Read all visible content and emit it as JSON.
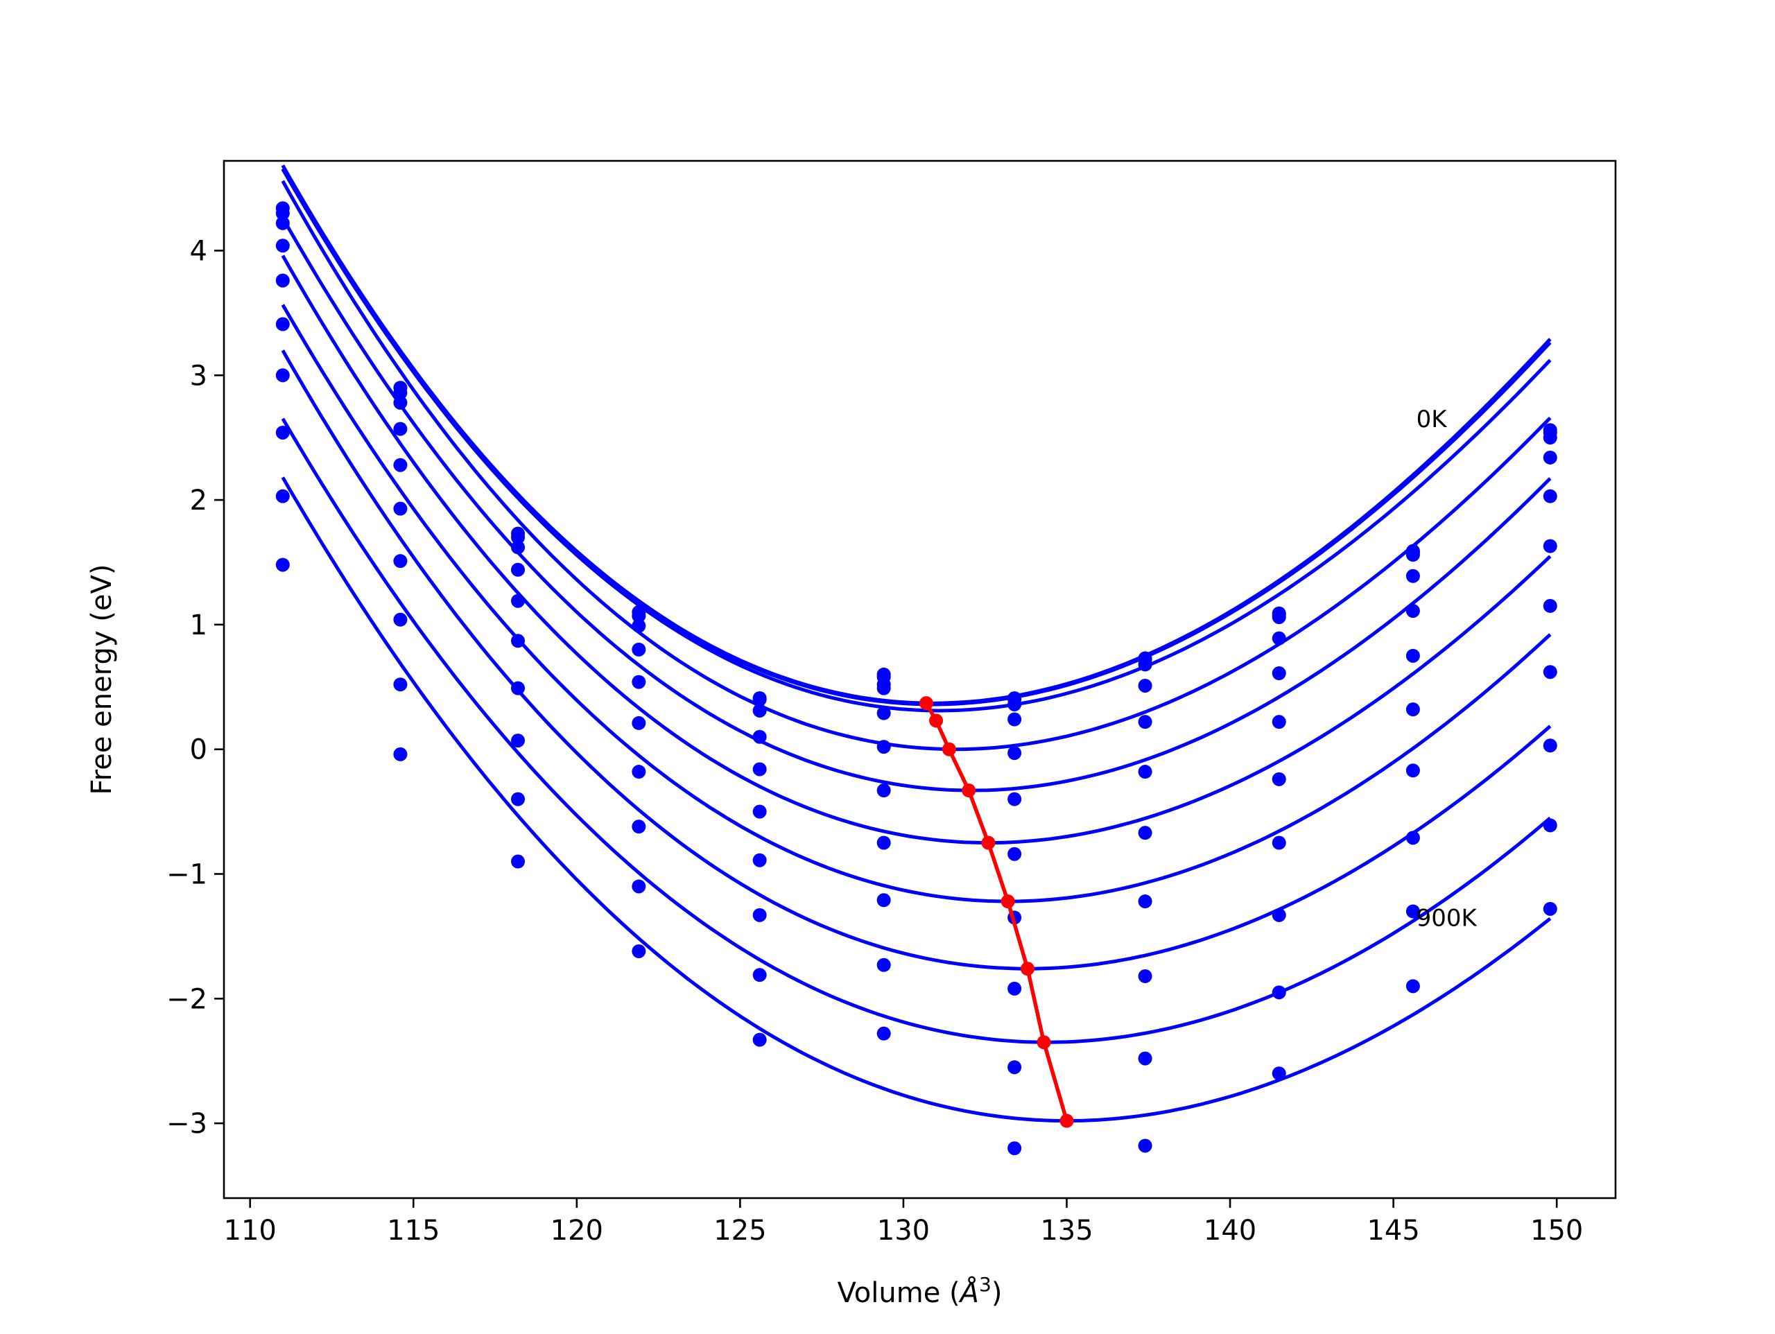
{
  "chart_data": {
    "type": "scatter",
    "title": "",
    "xlabel_main": "Volume (",
    "xlabel_unit_letter": "Å",
    "xlabel_unit_exp": "3",
    "xlabel_close": ")",
    "ylabel": "Free energy (eV)",
    "xlim": [
      109.2,
      151.8
    ],
    "ylim": [
      -3.6,
      4.72
    ],
    "xticks": [
      110,
      115,
      120,
      125,
      130,
      135,
      140,
      145,
      150
    ],
    "yticks": [
      -3,
      -2,
      -1,
      0,
      1,
      2,
      3,
      4
    ],
    "grid": false,
    "annotations": [
      {
        "text": "0K",
        "x": 145.7,
        "y": 2.65
      },
      {
        "text": "900K",
        "x": 145.7,
        "y": -1.35
      }
    ],
    "colors": {
      "isotherms": "#0000ff",
      "minimum_path": "#ff0000",
      "axes": "#000000"
    },
    "volumes": [
      111.0,
      114.6,
      118.2,
      121.9,
      125.6,
      129.4,
      133.4,
      137.4,
      141.5,
      145.6,
      149.8
    ],
    "series": [
      {
        "values": [
          4.34,
          2.9,
          1.73,
          1.1,
          0.41,
          0.6,
          0.41,
          0.73,
          1.09,
          1.59,
          2.56
        ]
      },
      {
        "values": [
          4.3,
          2.86,
          1.7,
          1.07,
          0.4,
          0.58,
          0.4,
          0.72,
          1.08,
          1.58,
          2.54
        ]
      },
      {
        "values": [
          4.22,
          2.78,
          1.62,
          0.99,
          0.31,
          0.49,
          0.36,
          0.68,
          1.06,
          1.56,
          2.5
        ]
      },
      {
        "values": [
          4.04,
          2.57,
          1.44,
          0.8,
          0.1,
          0.29,
          0.24,
          0.51,
          0.89,
          1.39,
          2.34
        ]
      },
      {
        "values": [
          3.76,
          2.28,
          1.19,
          0.54,
          -0.16,
          0.02,
          -0.03,
          0.22,
          0.61,
          1.11,
          2.03
        ]
      },
      {
        "values": [
          3.41,
          1.93,
          0.87,
          0.21,
          -0.5,
          -0.33,
          -0.4,
          -0.18,
          0.22,
          0.75,
          1.63
        ]
      },
      {
        "values": [
          3.0,
          1.51,
          0.49,
          -0.18,
          -0.89,
          -0.75,
          -0.84,
          -0.67,
          -0.24,
          0.32,
          1.15
        ]
      },
      {
        "values": [
          2.54,
          1.04,
          0.07,
          -0.62,
          -1.33,
          -1.21,
          -1.35,
          -1.22,
          -0.75,
          -0.17,
          0.62
        ]
      },
      {
        "values": [
          2.03,
          0.52,
          -0.4,
          -1.1,
          -1.81,
          -1.73,
          -1.92,
          -1.82,
          -1.33,
          -0.71,
          0.03
        ]
      },
      {
        "values": [
          1.48,
          -0.04,
          -0.9,
          -1.62,
          -2.33,
          -2.28,
          -2.55,
          -2.48,
          -1.95,
          -1.3,
          -0.61
        ]
      }
    ],
    "dots_only": [
      {
        "x": 129.4,
        "y": 0.52
      },
      {
        "x": 145.6,
        "y": -1.9
      },
      {
        "x": 133.4,
        "y": -3.2
      },
      {
        "x": 137.4,
        "y": -3.18
      },
      {
        "x": 141.5,
        "y": -2.6
      },
      {
        "x": 149.8,
        "y": -1.28
      }
    ],
    "fits": [
      {
        "v0": 130.9,
        "e0": 0.37,
        "a": 0.0095,
        "b": 7e-05
      },
      {
        "v0": 130.9,
        "e0": 0.36,
        "a": 0.00945,
        "b": 7e-05
      },
      {
        "v0": 131.1,
        "e0": 0.31,
        "a": 0.00935,
        "b": 7e-05
      },
      {
        "v0": 131.6,
        "e0": 0.0,
        "a": 0.0093,
        "b": 7e-05
      },
      {
        "v0": 132.1,
        "e0": -0.33,
        "a": 0.00905,
        "b": 6e-05
      },
      {
        "v0": 132.6,
        "e0": -0.75,
        "a": 0.0088,
        "b": 6e-05
      },
      {
        "v0": 133.2,
        "e0": -1.22,
        "a": 0.0086,
        "b": 5e-05
      },
      {
        "v0": 133.8,
        "e0": -1.76,
        "a": 0.0084,
        "b": 5e-05
      },
      {
        "v0": 134.4,
        "e0": -2.35,
        "a": 0.0082,
        "b": 4e-05
      },
      {
        "v0": 135.0,
        "e0": -2.98,
        "a": 0.008,
        "b": 4e-05
      }
    ],
    "minimum_path": {
      "x": [
        130.7,
        131.0,
        131.4,
        132.0,
        132.6,
        133.2,
        133.8,
        134.3,
        135.0
      ],
      "y": [
        0.37,
        0.23,
        0.0,
        -0.33,
        -0.75,
        -1.22,
        -1.76,
        -2.35,
        -2.98
      ]
    }
  }
}
